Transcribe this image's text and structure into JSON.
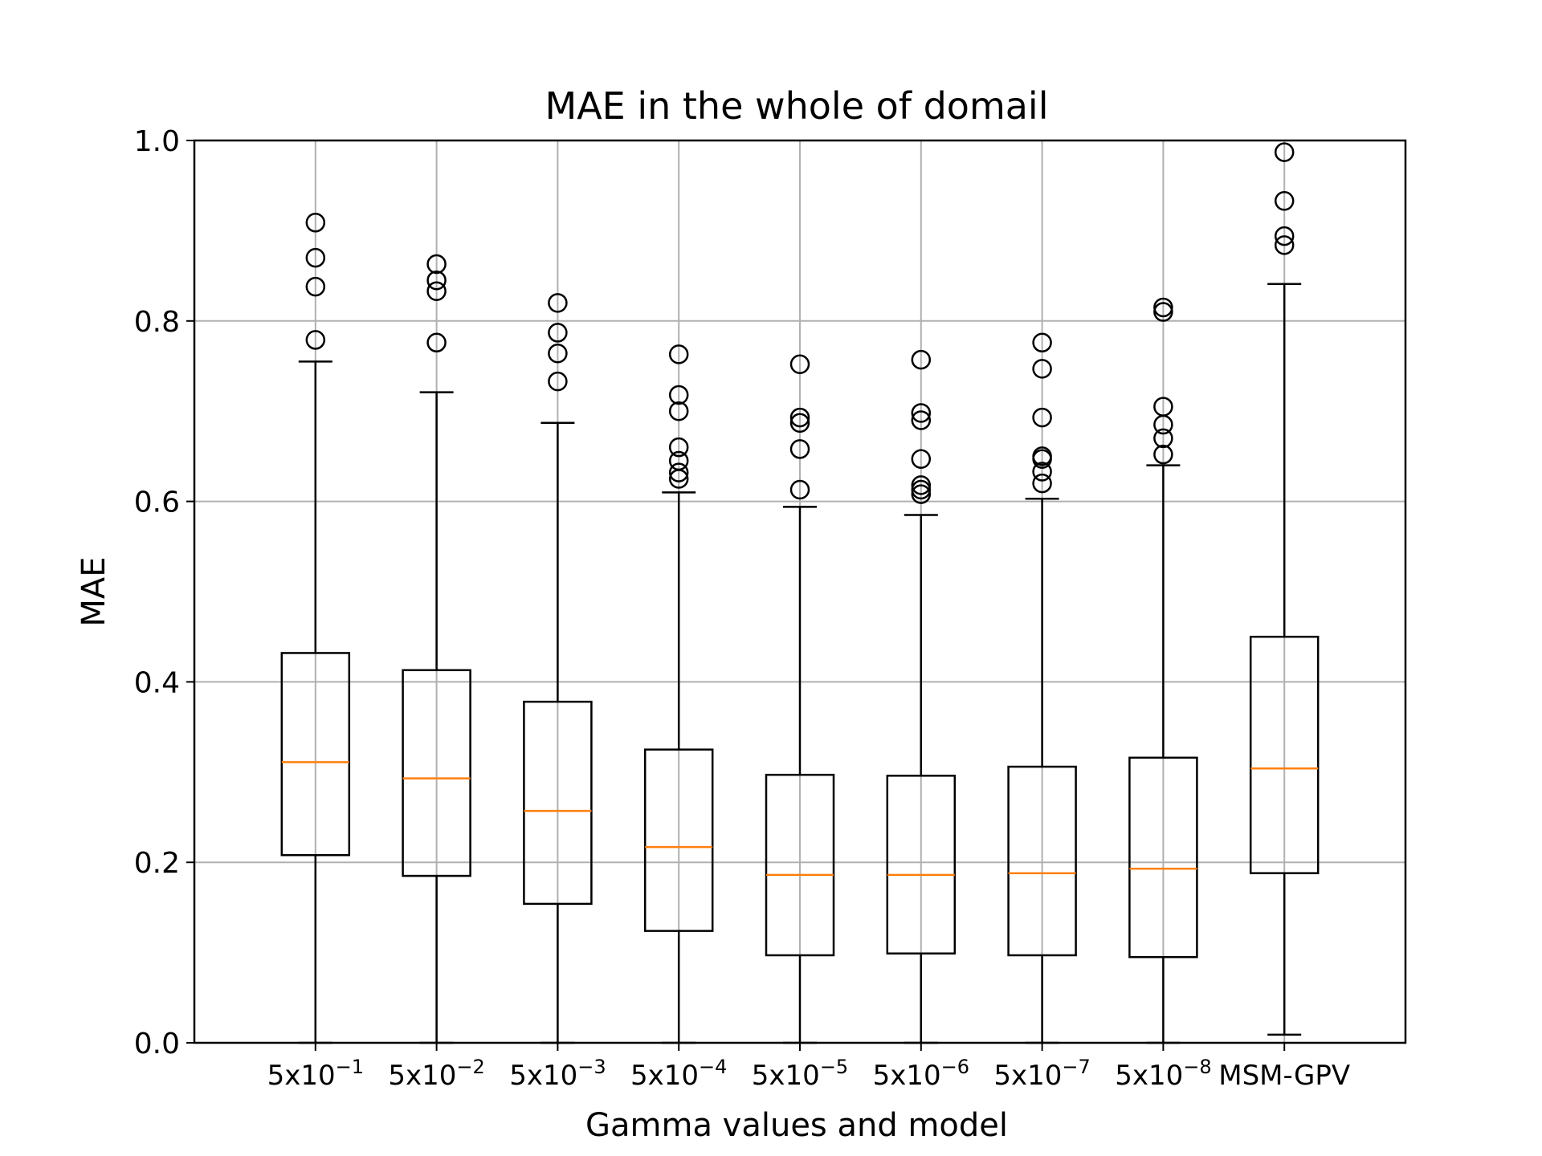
{
  "chart_data": {
    "type": "box",
    "title": "MAE in the whole of domail",
    "xlabel": "Gamma values and model",
    "ylabel": "MAE",
    "ylim": [
      0.0,
      1.0
    ],
    "yticks": [
      "0.0",
      "0.2",
      "0.4",
      "0.6",
      "0.8",
      "1.0"
    ],
    "grid": true,
    "categories": [
      {
        "base": "5x10",
        "exp": "−1"
      },
      {
        "base": "5x10",
        "exp": "−2"
      },
      {
        "base": "5x10",
        "exp": "−3"
      },
      {
        "base": "5x10",
        "exp": "−4"
      },
      {
        "base": "5x10",
        "exp": "−5"
      },
      {
        "base": "5x10",
        "exp": "−6"
      },
      {
        "base": "5x10",
        "exp": "−7"
      },
      {
        "base": "5x10",
        "exp": "−8"
      },
      {
        "base": "MSM-GPV",
        "exp": ""
      }
    ],
    "boxes": [
      {
        "whislo": 0.0,
        "q1": 0.208,
        "med": 0.311,
        "q3": 0.432,
        "whishi": 0.755,
        "fliers": [
          0.779,
          0.838,
          0.87,
          0.909
        ]
      },
      {
        "whislo": 0.0,
        "q1": 0.185,
        "med": 0.293,
        "q3": 0.413,
        "whishi": 0.721,
        "fliers": [
          0.776,
          0.833,
          0.845,
          0.863
        ]
      },
      {
        "whislo": 0.0,
        "q1": 0.154,
        "med": 0.257,
        "q3": 0.378,
        "whishi": 0.687,
        "fliers": [
          0.733,
          0.764,
          0.787,
          0.82
        ]
      },
      {
        "whislo": 0.0,
        "q1": 0.124,
        "med": 0.217,
        "q3": 0.325,
        "whishi": 0.61,
        "fliers": [
          0.625,
          0.632,
          0.645,
          0.66,
          0.7,
          0.718,
          0.763
        ]
      },
      {
        "whislo": 0.0,
        "q1": 0.097,
        "med": 0.186,
        "q3": 0.297,
        "whishi": 0.594,
        "fliers": [
          0.613,
          0.658,
          0.687,
          0.693,
          0.752
        ]
      },
      {
        "whislo": 0.0,
        "q1": 0.099,
        "med": 0.186,
        "q3": 0.296,
        "whishi": 0.585,
        "fliers": [
          0.608,
          0.613,
          0.618,
          0.647,
          0.69,
          0.698,
          0.757
        ]
      },
      {
        "whislo": 0.0,
        "q1": 0.097,
        "med": 0.188,
        "q3": 0.306,
        "whishi": 0.603,
        "fliers": [
          0.62,
          0.633,
          0.647,
          0.65,
          0.693,
          0.747,
          0.776
        ]
      },
      {
        "whislo": 0.0,
        "q1": 0.095,
        "med": 0.193,
        "q3": 0.316,
        "whishi": 0.64,
        "fliers": [
          0.652,
          0.67,
          0.685,
          0.705,
          0.81,
          0.815
        ]
      },
      {
        "whislo": 0.009,
        "q1": 0.188,
        "med": 0.304,
        "q3": 0.45,
        "whishi": 0.841,
        "fliers": [
          0.884,
          0.894,
          0.933,
          0.987
        ]
      }
    ],
    "colors": {
      "box": "#000000",
      "median": "#ff7f0e",
      "grid": "#b0b0b0"
    }
  }
}
